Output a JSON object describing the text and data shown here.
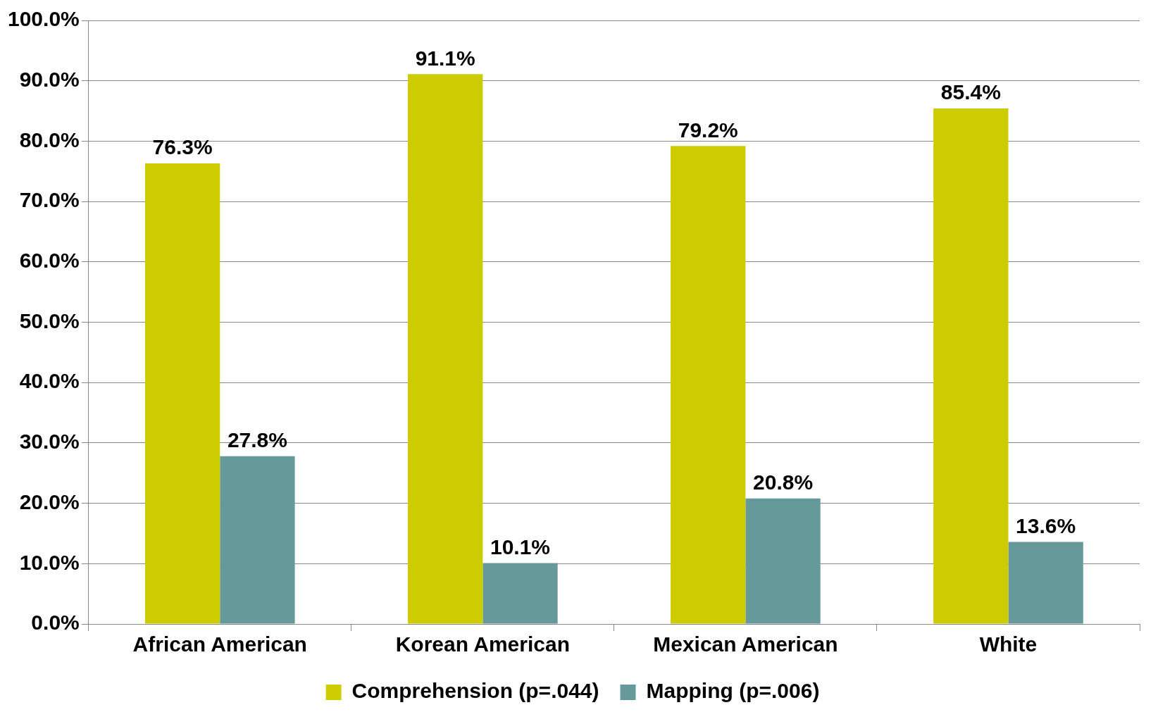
{
  "chart_data": {
    "type": "bar",
    "categories": [
      "African American",
      "Korean American",
      "Mexican American",
      "White"
    ],
    "series": [
      {
        "name": "Comprehension (p=.044)",
        "color": "#cccc00",
        "values": [
          76.3,
          91.1,
          79.2,
          85.4
        ],
        "value_labels": [
          "76.3%",
          "91.1%",
          "79.2%",
          "85.4%"
        ]
      },
      {
        "name": "Mapping (p=.006)",
        "color": "#669999",
        "values": [
          27.8,
          10.1,
          20.8,
          13.6
        ],
        "value_labels": [
          "27.8%",
          "10.1%",
          "20.8%",
          "13.6%"
        ]
      }
    ],
    "ylim": [
      0,
      100
    ],
    "yticks": [
      {
        "value": 0,
        "label": "0.0%"
      },
      {
        "value": 10,
        "label": "10.0%"
      },
      {
        "value": 20,
        "label": "20.0%"
      },
      {
        "value": 30,
        "label": "30.0%"
      },
      {
        "value": 40,
        "label": "40.0%"
      },
      {
        "value": 50,
        "label": "50.0%"
      },
      {
        "value": 60,
        "label": "60.0%"
      },
      {
        "value": 70,
        "label": "70.0%"
      },
      {
        "value": 80,
        "label": "80.0%"
      },
      {
        "value": 90,
        "label": "90.0%"
      },
      {
        "value": 100,
        "label": "100.0%"
      }
    ],
    "grid": "y",
    "legend": "bottom"
  }
}
